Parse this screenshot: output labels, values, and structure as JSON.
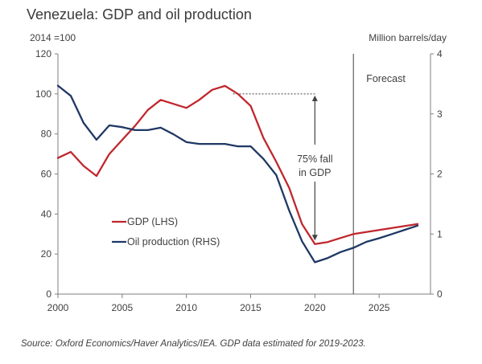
{
  "chart_data": {
    "type": "line",
    "title": "Venezuela: GDP and oil production",
    "ylabel_left": "2014 =100",
    "ylabel_right": "Million barrels/day",
    "ylim_left": [
      0,
      120
    ],
    "ylim_right": [
      0,
      4
    ],
    "xlim": [
      2000,
      2029
    ],
    "x_ticks": [
      "2000",
      "2005",
      "2010",
      "2015",
      "2020",
      "2025"
    ],
    "y_ticks_left": [
      "0",
      "20",
      "40",
      "60",
      "80",
      "100",
      "120"
    ],
    "y_ticks_right": [
      "0",
      "1",
      "2",
      "3",
      "4"
    ],
    "grid": false,
    "forecast_start": 2023,
    "forecast_label": "Forecast",
    "annotation": {
      "line1": "75% fall",
      "line2": "in GDP",
      "from_year": 2013,
      "from_value": 100,
      "to_value": 26
    },
    "legend_position": "middle-left",
    "series": [
      {
        "name": "GDP (LHS)",
        "axis": "left",
        "color": "#c0272d",
        "x": [
          2000,
          2001,
          2002,
          2003,
          2004,
          2005,
          2006,
          2007,
          2008,
          2009,
          2010,
          2011,
          2012,
          2013,
          2014,
          2015,
          2016,
          2017,
          2018,
          2019,
          2020,
          2021,
          2022,
          2023,
          2024,
          2025,
          2026,
          2027,
          2028
        ],
        "values": [
          68,
          71,
          64,
          59,
          70,
          77,
          84,
          92,
          97,
          95,
          93,
          97,
          102,
          104,
          100,
          94,
          78,
          66,
          53,
          35,
          25,
          26,
          28,
          30,
          31,
          32,
          33,
          34,
          35
        ]
      },
      {
        "name": "Oil production (RHS)",
        "axis": "right",
        "color": "#1f3864",
        "x": [
          2000,
          2001,
          2002,
          2003,
          2004,
          2005,
          2006,
          2007,
          2008,
          2009,
          2010,
          2011,
          2012,
          2013,
          2014,
          2015,
          2016,
          2017,
          2018,
          2019,
          2020,
          2021,
          2022,
          2023,
          2024,
          2025,
          2026,
          2027,
          2028
        ],
        "values": [
          3.47,
          3.3,
          2.85,
          2.57,
          2.81,
          2.78,
          2.73,
          2.73,
          2.77,
          2.66,
          2.53,
          2.5,
          2.5,
          2.5,
          2.46,
          2.46,
          2.25,
          1.98,
          1.39,
          0.88,
          0.53,
          0.6,
          0.7,
          0.77,
          0.87,
          0.93,
          1.0,
          1.07,
          1.14
        ]
      }
    ]
  },
  "footer": {
    "source": "Source: Oxford Economics/Haver Analytics/IEA. GDP data estimated for 2019-2023."
  }
}
